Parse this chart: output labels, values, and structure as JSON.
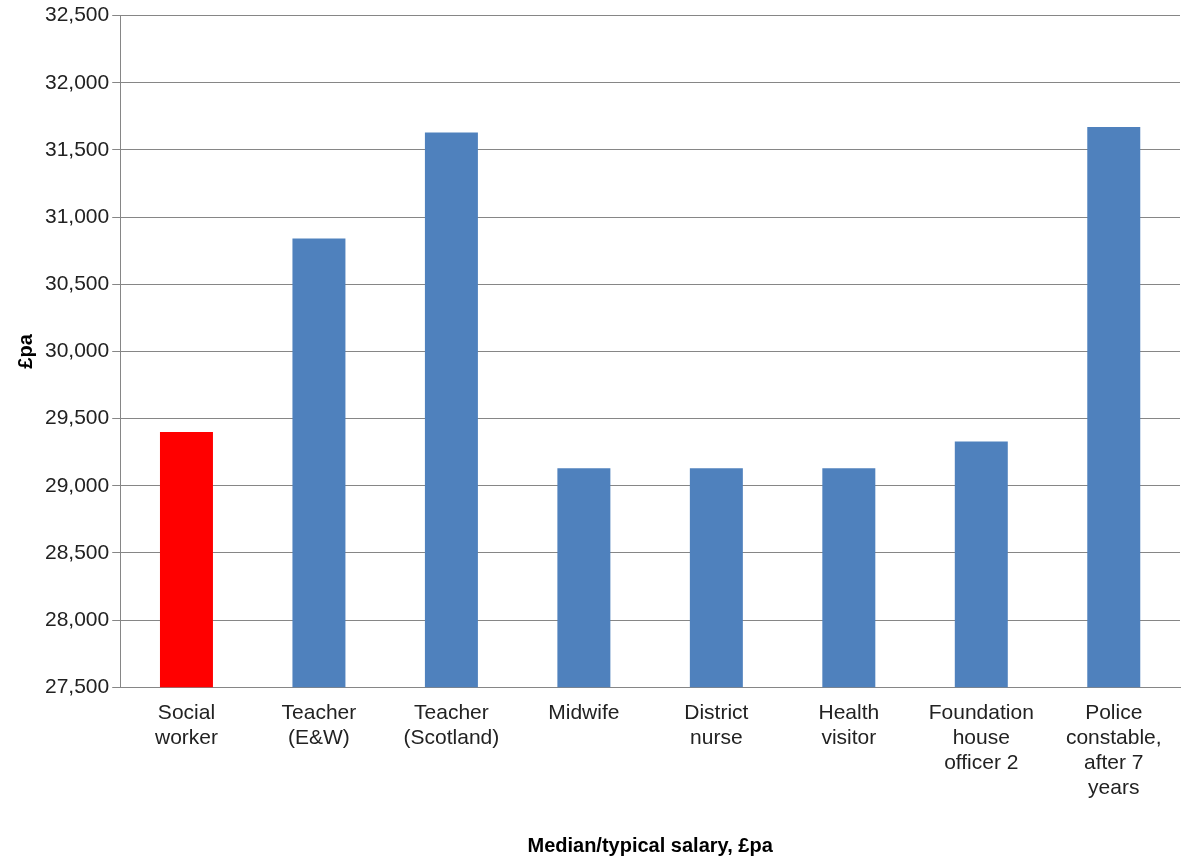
{
  "chart_data": {
    "type": "bar",
    "xlabel": "Median/typical salary, £pa",
    "ylabel": "£pa",
    "categories": [
      "Social worker",
      "Teacher (E&W)",
      "Teacher (Scotland)",
      "Midwife",
      "District nurse",
      "Health visitor",
      "Foundation house officer 2",
      "Police constable, after 7 years"
    ],
    "values": [
      29400,
      30840,
      31630,
      29130,
      29130,
      29130,
      29330,
      31670
    ],
    "colors": [
      "#ff0000",
      "#4f81bd",
      "#4f81bd",
      "#4f81bd",
      "#4f81bd",
      "#4f81bd",
      "#4f81bd",
      "#4f81bd"
    ],
    "ylim": [
      27500,
      32500
    ],
    "yticks": [
      {
        "value": 27500,
        "label": "27,500"
      },
      {
        "value": 28000,
        "label": "28,000"
      },
      {
        "value": 28500,
        "label": "28,500"
      },
      {
        "value": 29000,
        "label": "29,000"
      },
      {
        "value": 29500,
        "label": "29,500"
      },
      {
        "value": 30000,
        "label": "30,000"
      },
      {
        "value": 30500,
        "label": "30,500"
      },
      {
        "value": 31000,
        "label": "31,000"
      },
      {
        "value": 31500,
        "label": "31,500"
      },
      {
        "value": 32000,
        "label": "32,000"
      },
      {
        "value": 32500,
        "label": "32,500"
      }
    ],
    "grid": "y",
    "legend": false
  }
}
